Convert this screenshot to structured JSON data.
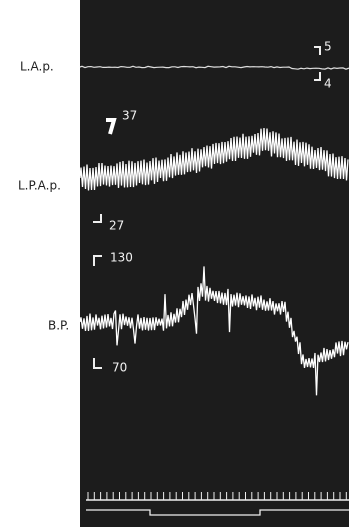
{
  "traces": {
    "la_p": {
      "label": "L.A.p.",
      "scale_high": "5",
      "scale_low": "4"
    },
    "lpa_p": {
      "label": "L.P.A.p.",
      "scale_high": "37",
      "scale_low": "27"
    },
    "bp": {
      "label": "B.P.",
      "scale_high": "130",
      "scale_low": "70"
    }
  }
}
